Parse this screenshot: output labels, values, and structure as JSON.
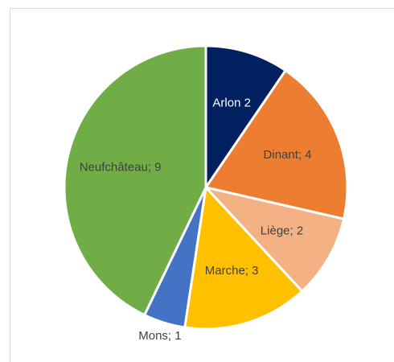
{
  "chart_data": {
    "type": "pie",
    "values": [
      2,
      4,
      2,
      3,
      1,
      9
    ],
    "value_labels": [
      "Arlon 2",
      "Dinant; 4",
      "Liège; 2",
      "Marche; 3",
      "Mons; 1",
      "Neufchâteau; 9"
    ],
    "colors": [
      "#002060",
      "#ed7d31",
      "#f4b183",
      "#ffc000",
      "#4472c4",
      "#70ad47"
    ],
    "start_angle": 0,
    "direction": "clockwise"
  }
}
